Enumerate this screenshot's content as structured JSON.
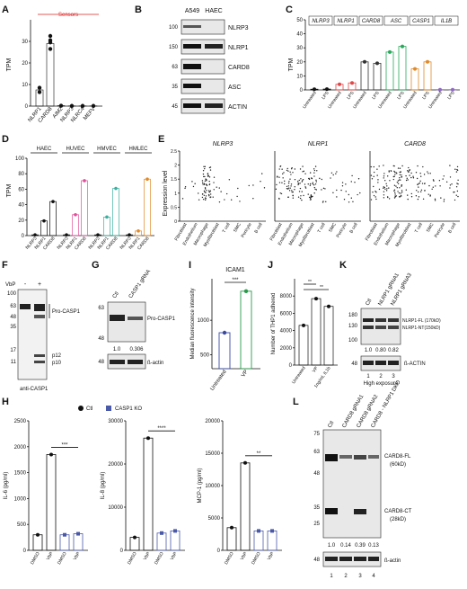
{
  "panelA": {
    "letter": "A",
    "header": "Sensors",
    "ylabel": "TPM",
    "categories": [
      "NLRP1",
      "CARD8",
      "AIM2",
      "NLRP3",
      "NLRC4",
      "MEFV"
    ],
    "values": [
      7.5,
      29,
      0.2,
      0.1,
      0.1,
      0.1
    ],
    "points": [
      [
        6.5,
        8.5
      ],
      [
        26.5,
        29.5,
        30.5,
        32.5
      ],
      [
        0.2
      ],
      [
        0.1
      ],
      [
        0.1
      ],
      [
        0.1
      ]
    ],
    "yticks": [
      0,
      10,
      20,
      30
    ],
    "ylim": [
      0,
      40
    ]
  },
  "panelB": {
    "letter": "B",
    "cols": [
      "A549",
      "HAEC"
    ],
    "rows": [
      {
        "mw": "100",
        "label": "NLRP3"
      },
      {
        "mw": "150",
        "label": "NLRP1"
      },
      {
        "mw": "63",
        "label": "CARD8"
      },
      {
        "mw": "35",
        "label": "ASC"
      },
      {
        "mw": "45",
        "label": "ACTIN"
      }
    ]
  },
  "panelC": {
    "letter": "C",
    "ylabel": "TPM",
    "genes": [
      "NLRP3",
      "NLRP1",
      "CARD8",
      "ASC",
      "CASP1",
      "IL1B"
    ],
    "conditions": [
      "Untreated",
      "LPS"
    ],
    "values": [
      [
        0.5,
        0.6
      ],
      [
        4,
        5
      ],
      [
        20,
        19
      ],
      [
        27,
        31
      ],
      [
        15,
        20
      ],
      [
        0.2,
        0.2
      ]
    ],
    "yticks": [
      0,
      10,
      20,
      30,
      40,
      50
    ],
    "ylim": [
      0,
      50
    ]
  },
  "panelD": {
    "letter": "D",
    "ylabel": "TPM",
    "groups": [
      "HAEC",
      "HUVEC",
      "HMVEC",
      "HMLEC"
    ],
    "genes": [
      "NLRP3",
      "NLRP1",
      "CARD8"
    ],
    "values": [
      [
        1,
        19,
        44
      ],
      [
        1,
        27,
        71
      ],
      [
        1,
        24,
        61
      ],
      [
        1,
        6,
        73
      ]
    ],
    "yticks": [
      0,
      20,
      40,
      60,
      80,
      100
    ],
    "ylim": [
      0,
      100
    ]
  },
  "panelE": {
    "letter": "E",
    "ylabel": "Expression level",
    "titles": [
      "NLRP3",
      "NLRP1",
      "CARD8"
    ],
    "cells": [
      "Fibroblast",
      "Endothelium",
      "Macrophage",
      "Myofibroblast",
      "T cell",
      "SMC",
      "Pericyte",
      "B cell"
    ],
    "yticks": [
      "0",
      "0.5",
      "1",
      "1.5",
      "2",
      "2.5"
    ]
  },
  "panelF": {
    "letter": "F",
    "vbp": "VbP",
    "lanes": [
      "-",
      "+"
    ],
    "mw": [
      "100",
      "63",
      "48",
      "35",
      "17",
      "11"
    ],
    "labels": [
      "Pro-CASP1",
      "p12",
      "p10"
    ],
    "footer": "anti-CASP1"
  },
  "panelG": {
    "letter": "G",
    "lanes": [
      "Ctl",
      "CASP1 gRNA"
    ],
    "mw": [
      "63",
      "48",
      "48"
    ],
    "labels": [
      "Pro-CASP1",
      "ß-actin"
    ],
    "quant": [
      "1.0",
      "0.306"
    ]
  },
  "panelI": {
    "letter": "I",
    "title": "ICAM1",
    "ylabel": "Median fluorescence intensity",
    "categories": [
      "Untreated",
      "VP"
    ],
    "values": [
      820,
      1420
    ],
    "yticks": [
      500,
      1000
    ],
    "ylim": [
      300,
      1600
    ],
    "sig": "***"
  },
  "panelJ": {
    "letter": "J",
    "ylabel": "Number of THP1 adhered",
    "categories": [
      "Untreated",
      "VP",
      "1ng/mL IL1b"
    ],
    "values": [
      4600,
      7700,
      6800
    ],
    "yticks": [
      0,
      2000,
      4000,
      6000,
      8000
    ],
    "ylim": [
      0,
      10000
    ],
    "sig": [
      "**",
      "**"
    ]
  },
  "panelK": {
    "letter": "K",
    "lanes": [
      "Ctl",
      "NLRP1 gRNA1",
      "NLRP1 gRNA3"
    ],
    "mw": [
      "180",
      "130",
      "100",
      "48"
    ],
    "labels": [
      "NLRP1-FL (170kD)",
      "NLRP1-NT(150kD)",
      "ß-ACTIN"
    ],
    "quant": [
      "1.0",
      "0.80",
      "0.82"
    ],
    "lane_numbers": [
      "1",
      "2",
      "3"
    ],
    "footer": "High exposure"
  },
  "panelH": {
    "letter": "H",
    "legend": [
      "Ctl",
      "CASP1 KO"
    ],
    "colors": {
      "ctl": "#111111",
      "ko": "#4b5aa8"
    },
    "charts": [
      {
        "ylabel": "IL-6 (pg/ml)",
        "yticks": [
          0,
          500,
          1000,
          1500,
          2000,
          2500
        ],
        "ymax": 2500,
        "values": [
          300,
          1850,
          300,
          320
        ],
        "sig": "***"
      },
      {
        "ylabel": "IL-8 (pg/ml)",
        "yticks": [
          0,
          10000,
          20000,
          30000
        ],
        "ymax": 30000,
        "values": [
          3000,
          26000,
          4000,
          4500
        ],
        "sig": "****"
      },
      {
        "ylabel": "MCP-1 (pg/ml)",
        "yticks": [
          0,
          5000,
          10000,
          15000,
          20000
        ],
        "ymax": 20000,
        "values": [
          3500,
          13500,
          3000,
          3000
        ],
        "sig": "**"
      }
    ],
    "xcats": [
      "DMSO",
      "VbP",
      "DMSO",
      "VbP"
    ]
  },
  "panelL": {
    "letter": "L",
    "lanes": [
      "Ctl",
      "CARD8 gRNA1",
      "CARD8 gRNA2",
      "CARD8 - NLRP1 DKO"
    ],
    "mw": [
      "75",
      "63",
      "48",
      "35",
      "25",
      "48"
    ],
    "labels": [
      "CARD8-FL",
      "(60kD)",
      "CARD8-CT",
      "(28kD)",
      "ß-actin"
    ],
    "quant": [
      "1.0",
      "0.14",
      "0.39",
      "0.13"
    ],
    "lane_numbers": [
      "1",
      "2",
      "3",
      "4"
    ]
  }
}
